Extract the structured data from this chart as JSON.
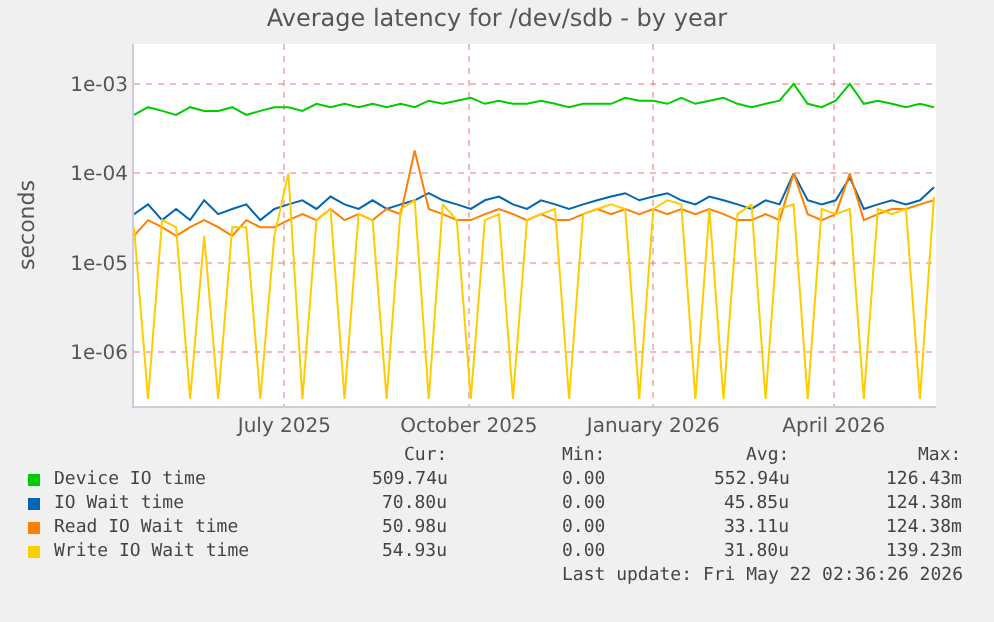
{
  "chart_data": {
    "type": "line",
    "title": "Average latency for /dev/sdb - by year",
    "ylabel": "seconds",
    "x": [
      "2025-04-17",
      "2025-04-24",
      "2025-05-01",
      "2025-05-08",
      "2025-05-15",
      "2025-05-22",
      "2025-05-29",
      "2025-06-05",
      "2025-06-12",
      "2025-06-19",
      "2025-06-26",
      "2025-07-03",
      "2025-07-10",
      "2025-07-17",
      "2025-07-24",
      "2025-07-31",
      "2025-08-07",
      "2025-08-14",
      "2025-08-21",
      "2025-08-28",
      "2025-09-04",
      "2025-09-11",
      "2025-09-18",
      "2025-09-25",
      "2025-10-02",
      "2025-10-09",
      "2025-10-16",
      "2025-10-23",
      "2025-10-30",
      "2025-11-06",
      "2025-11-13",
      "2025-11-20",
      "2025-11-27",
      "2025-12-04",
      "2025-12-11",
      "2025-12-18",
      "2025-12-25",
      "2026-01-01",
      "2026-01-08",
      "2026-01-15",
      "2026-01-22",
      "2026-01-29",
      "2026-02-05",
      "2026-02-12",
      "2026-02-19",
      "2026-02-26",
      "2026-03-05",
      "2026-03-12",
      "2026-03-19",
      "2026-03-26",
      "2026-04-02",
      "2026-04-09",
      "2026-04-16",
      "2026-04-23",
      "2026-04-30",
      "2026-05-07",
      "2026-05-14",
      "2026-05-21"
    ],
    "series": [
      {
        "name": "Device IO time",
        "color": "#00cc00",
        "values": [
          0.00045,
          0.00055,
          0.0005,
          0.00045,
          0.00055,
          0.0005,
          0.0005,
          0.00055,
          0.00045,
          0.0005,
          0.00055,
          0.00055,
          0.0005,
          0.0006,
          0.00055,
          0.0006,
          0.00055,
          0.0006,
          0.00055,
          0.0006,
          0.00055,
          0.00065,
          0.0006,
          0.00065,
          0.0007,
          0.0006,
          0.00065,
          0.0006,
          0.0006,
          0.00065,
          0.0006,
          0.00055,
          0.0006,
          0.0006,
          0.0006,
          0.0007,
          0.00065,
          0.00065,
          0.0006,
          0.0007,
          0.0006,
          0.00065,
          0.0007,
          0.0006,
          0.00055,
          0.0006,
          0.00065,
          0.001,
          0.0006,
          0.00055,
          0.00065,
          0.001,
          0.0006,
          0.00065,
          0.0006,
          0.00055,
          0.0006,
          0.00055
        ]
      },
      {
        "name": "IO Wait time",
        "color": "#0066b3",
        "values": [
          3.5e-05,
          4.5e-05,
          3e-05,
          4e-05,
          3e-05,
          5e-05,
          3.5e-05,
          4e-05,
          4.5e-05,
          3e-05,
          4e-05,
          4.5e-05,
          5e-05,
          4e-05,
          5.5e-05,
          4.5e-05,
          4e-05,
          5e-05,
          4e-05,
          4.5e-05,
          5e-05,
          6e-05,
          5e-05,
          4.5e-05,
          4e-05,
          5e-05,
          5.5e-05,
          4.5e-05,
          4e-05,
          5e-05,
          4.5e-05,
          4e-05,
          4.5e-05,
          5e-05,
          5.5e-05,
          6e-05,
          5e-05,
          5.5e-05,
          6e-05,
          5e-05,
          4.5e-05,
          5.5e-05,
          5e-05,
          4.5e-05,
          4e-05,
          5e-05,
          4.5e-05,
          0.0001,
          5e-05,
          4.5e-05,
          5e-05,
          9e-05,
          4e-05,
          4.5e-05,
          5e-05,
          4.5e-05,
          5e-05,
          7e-05
        ]
      },
      {
        "name": "Read IO Wait time",
        "color": "#ff8000",
        "values": [
          2e-05,
          3e-05,
          2.5e-05,
          2e-05,
          2.5e-05,
          3e-05,
          2.5e-05,
          2e-05,
          3e-05,
          2.5e-05,
          2.5e-05,
          3e-05,
          3.5e-05,
          3e-05,
          4e-05,
          3e-05,
          3.5e-05,
          3e-05,
          4e-05,
          3.5e-05,
          0.00018,
          4e-05,
          3.5e-05,
          3e-05,
          3e-05,
          3.5e-05,
          4e-05,
          3.5e-05,
          3e-05,
          3.5e-05,
          3e-05,
          3e-05,
          3.5e-05,
          4e-05,
          3.5e-05,
          4e-05,
          3.5e-05,
          4e-05,
          3.5e-05,
          4e-05,
          3.5e-05,
          4e-05,
          3.5e-05,
          3e-05,
          3e-05,
          3.5e-05,
          3e-05,
          0.0001,
          3.5e-05,
          3e-05,
          3.5e-05,
          0.0001,
          3e-05,
          3.5e-05,
          4e-05,
          4e-05,
          4.5e-05,
          5e-05
        ]
      },
      {
        "name": "Write IO Wait time",
        "color": "#ffcc00",
        "values": [
          2.5e-05,
          3e-07,
          3e-05,
          2.5e-05,
          3e-07,
          2e-05,
          3e-07,
          2.5e-05,
          2.5e-05,
          3e-07,
          2e-05,
          0.0001,
          3e-07,
          3e-05,
          4e-05,
          3e-07,
          3.5e-05,
          3e-05,
          3e-07,
          4e-05,
          5e-05,
          3e-07,
          4.5e-05,
          3e-05,
          3e-07,
          3e-05,
          3.5e-05,
          3e-07,
          3e-05,
          3.5e-05,
          4e-05,
          3e-07,
          3.5e-05,
          4e-05,
          4.5e-05,
          4e-05,
          3e-07,
          4e-05,
          5e-05,
          4.5e-05,
          3e-07,
          4e-05,
          3e-07,
          3.5e-05,
          4.5e-05,
          3e-07,
          4e-05,
          4.5e-05,
          3e-07,
          4e-05,
          3.5e-05,
          4e-05,
          3e-07,
          4e-05,
          3.5e-05,
          4e-05,
          3e-07,
          5.5e-05
        ]
      }
    ],
    "log": "y",
    "ylim": [
      2.5e-07,
      0.0028
    ],
    "yticks": [
      {
        "value": 0.001,
        "label": "1e-03"
      },
      {
        "value": 0.0001,
        "label": "1e-04"
      },
      {
        "value": 1e-05,
        "label": "1e-05"
      },
      {
        "value": 1e-06,
        "label": "1e-06"
      }
    ],
    "xlim": [
      "2025-04-17",
      "2026-05-22"
    ],
    "xticks": [
      {
        "value": "2025-07-01",
        "label": "July 2025"
      },
      {
        "value": "2025-10-01",
        "label": "October 2025"
      },
      {
        "value": "2026-01-01",
        "label": "January 2026"
      },
      {
        "value": "2026-04-01",
        "label": "April 2026"
      }
    ],
    "grid": true,
    "legend": "bottom",
    "marker": "none",
    "line_style": "solid",
    "annotations": [
      "Cur:",
      "Min:",
      "Avg:",
      "Max:",
      "509.74u",
      "0.00",
      "552.94u",
      "126.43m",
      "70.80u",
      "0.00",
      "45.85u",
      "124.38m",
      "50.98u",
      "0.00",
      "33.11u",
      "124.38m",
      "54.93u",
      "0.00",
      "31.80u",
      "139.23m",
      "Last update: Fri May 22 02:36:26 2026"
    ]
  }
}
